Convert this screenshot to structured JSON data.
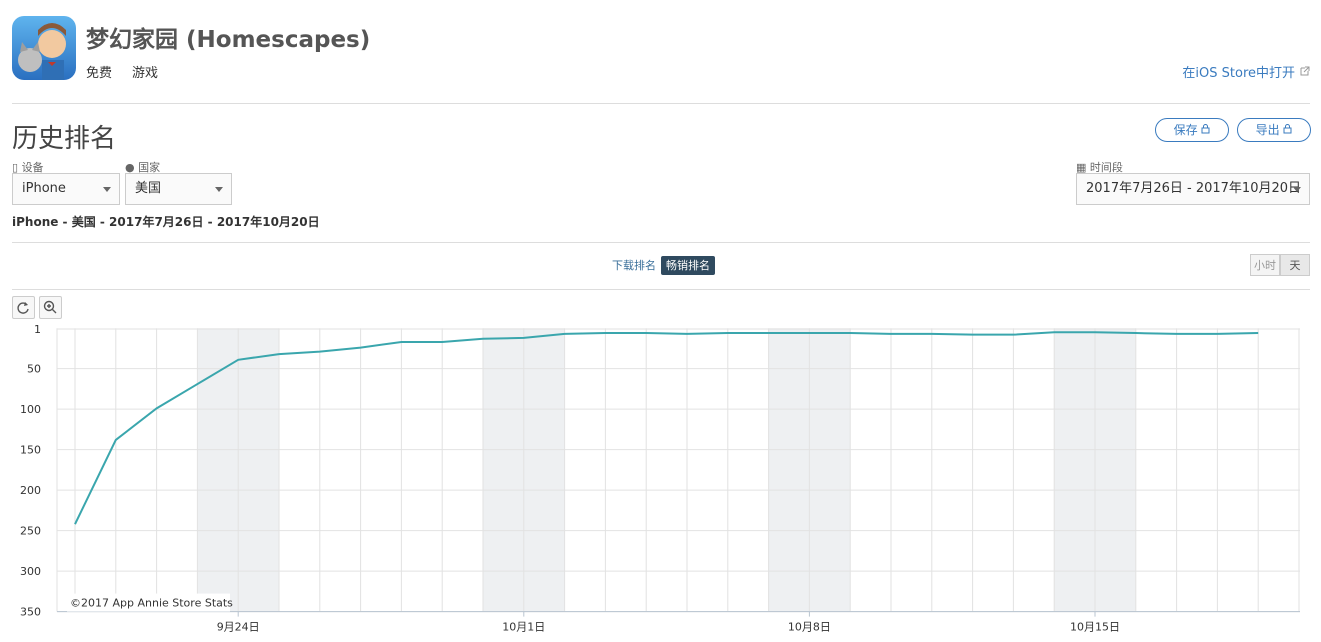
{
  "header": {
    "title": "梦幻家园 (Homescapes)",
    "price": "免费",
    "genre": "游戏",
    "store_link": "在iOS Store中打开"
  },
  "page_title": "历史排名",
  "actions": [
    "保存",
    "导出"
  ],
  "filters": {
    "device_label": "设备",
    "device": "iPhone",
    "country_label": "国家",
    "country": "美国",
    "period_label": "时间段",
    "period": "2017年7月26日 - 2017年10月20日"
  },
  "summary": "iPhone - 美国 - 2017年7月26日 - 2017年10月20日",
  "tabs": [
    "下载排名",
    "畅销排名"
  ],
  "granularity": [
    "小时",
    "天"
  ],
  "chart_data": {
    "type": "line",
    "x": [
      null,
      null,
      null,
      null,
      "9月24日",
      null,
      null,
      null,
      null,
      null,
      null,
      "10月1日",
      null,
      null,
      null,
      null,
      null,
      null,
      "10月8日",
      null,
      null,
      null,
      null,
      null,
      null,
      "10月15日",
      null,
      null,
      null,
      null
    ],
    "values": [
      242,
      138,
      99,
      69,
      39,
      32,
      29,
      24,
      17,
      17,
      13,
      12,
      7,
      6,
      6,
      7,
      6,
      6,
      6,
      6,
      7,
      7,
      8,
      8,
      5,
      5,
      6,
      7,
      7,
      6
    ],
    "color": "#3aa6ad",
    "ylim": [
      0,
      350
    ],
    "reversed": true,
    "yticks": [
      1,
      50,
      100,
      150,
      200,
      250,
      300,
      350
    ],
    "grid": true,
    "credit": "©2017 App Annie Store Stats"
  }
}
